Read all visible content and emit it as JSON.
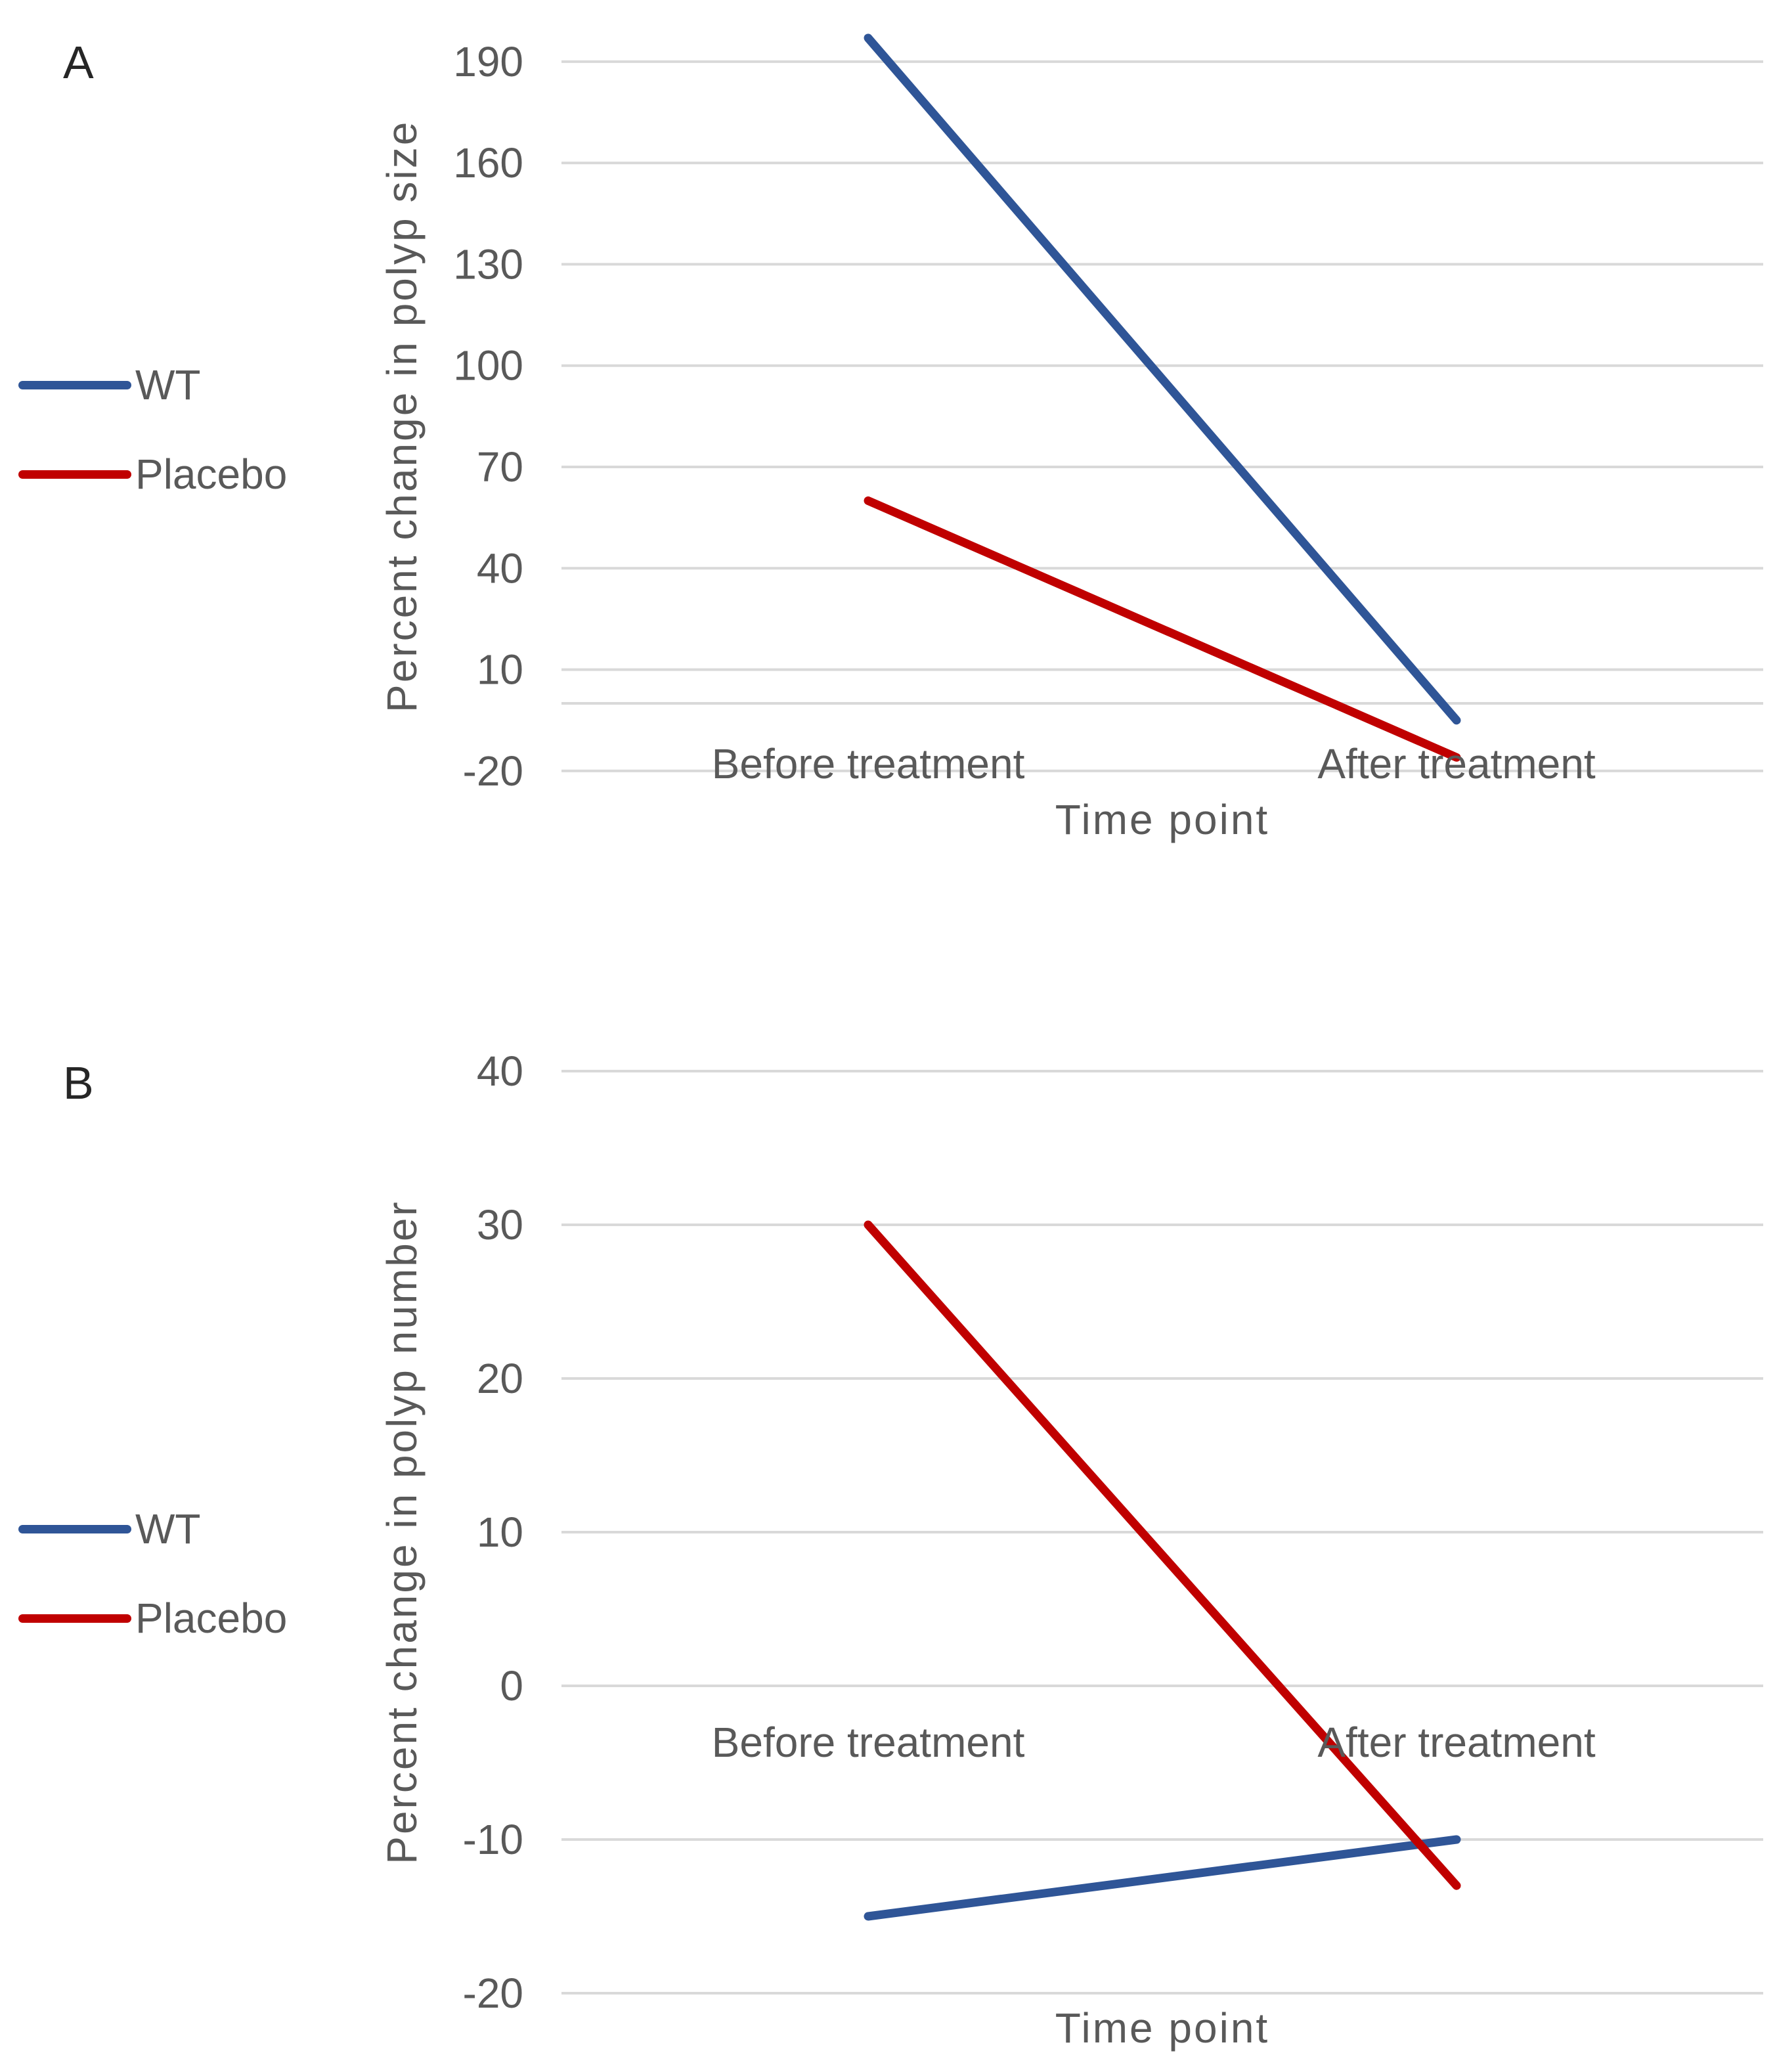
{
  "panels": [
    {
      "label": "A"
    },
    {
      "label": "B"
    }
  ],
  "chart_data": [
    {
      "type": "line",
      "panel": "A",
      "title": "",
      "categories": [
        "Before treatment",
        "After treatment"
      ],
      "series": [
        {
          "name": "WT",
          "color": "#2F5597",
          "values": [
            197,
            -5
          ]
        },
        {
          "name": "Placebo",
          "color": "#C00000",
          "values": [
            60,
            -16
          ]
        }
      ],
      "xlabel": "Time point",
      "ylabel": "Percent change in polyp size",
      "yticks": [
        190,
        160,
        130,
        100,
        70,
        40,
        10,
        -20
      ],
      "ylim": [
        -20,
        208
      ],
      "axis_line_value": 0,
      "grid": true,
      "legend_position": "left",
      "grid_color": "#D9D9D9",
      "text_color": "#595959"
    },
    {
      "type": "line",
      "panel": "B",
      "title": "",
      "categories": [
        "Before treatment",
        "After treatment"
      ],
      "series": [
        {
          "name": "WT",
          "color": "#2F5597",
          "values": [
            -15,
            -10
          ]
        },
        {
          "name": "Placebo",
          "color": "#C00000",
          "values": [
            30,
            -13
          ]
        }
      ],
      "xlabel": "Time point",
      "ylabel": "Percent change in polyp number",
      "yticks": [
        40,
        30,
        20,
        10,
        0,
        -10,
        -20
      ],
      "ylim": [
        -25,
        43
      ],
      "axis_line_value": 0,
      "grid": true,
      "legend_position": "left",
      "grid_color": "#D9D9D9",
      "text_color": "#595959"
    }
  ]
}
